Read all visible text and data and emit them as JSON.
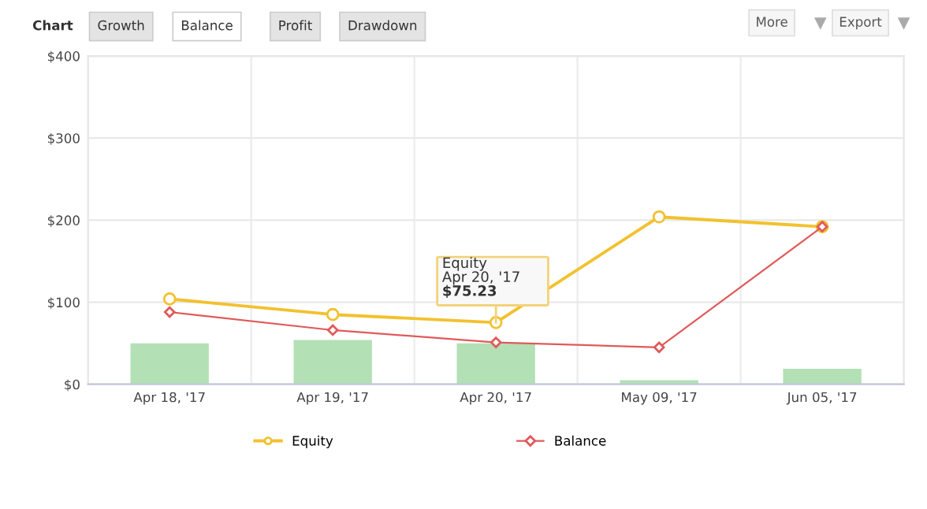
{
  "chart_data": {
    "type": "bar",
    "categories": [
      "Apr 18, '17",
      "Apr 19, '17",
      "Apr 20, '17",
      "May 09, '17",
      "Jun 05, '17"
    ],
    "series": [
      {
        "color": "#b3e0b5",
        "values": [
          50,
          54,
          50,
          5,
          19
        ]
      },
      {
        "name": "Equity",
        "type": "line",
        "color": "#f2c12e",
        "marker": "circle",
        "values": [
          104,
          85,
          75.23,
          204,
          192
        ]
      },
      {
        "name": "Balance",
        "type": "line",
        "color": "#e05a5a",
        "marker": "diamond",
        "values": [
          88,
          66,
          51,
          45,
          192
        ]
      }
    ],
    "ylim": [
      0,
      400
    ],
    "yticks": [
      {
        "value": 0,
        "label": "$0"
      },
      {
        "value": 100,
        "label": "$100"
      },
      {
        "value": 200,
        "label": "$200"
      },
      {
        "value": 300,
        "label": "$300"
      },
      {
        "value": 400,
        "label": "$400"
      }
    ],
    "grid": true,
    "legend": "bottom",
    "annotations": [
      "Chart",
      "Growth",
      "Balance",
      "Profit",
      "Drawdown",
      "More",
      "Export",
      "Equity",
      "Apr 20, '17",
      {
        "text": "$75.23",
        "x": "Apr 20, '17",
        "y": 75.23
      }
    ]
  }
}
